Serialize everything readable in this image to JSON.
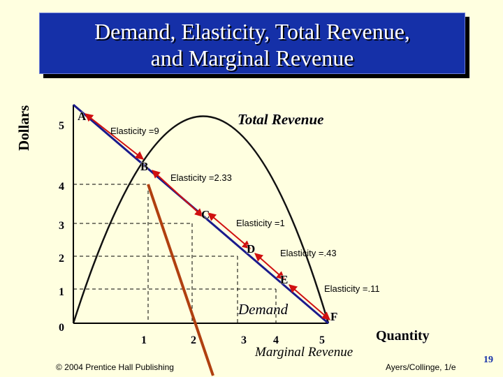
{
  "title": {
    "line1": "Demand, Elasticity, Total Revenue,",
    "line2": "and Marginal Revenue"
  },
  "y_axis_label": "Dollars",
  "x_axis_label": "Quantity",
  "y_ticks": [
    "5",
    "4",
    "3",
    "2",
    "1",
    "0"
  ],
  "x_ticks": [
    "1",
    "2",
    "3",
    "4",
    "5"
  ],
  "points": [
    "A",
    "B",
    "C",
    "D",
    "E",
    "F"
  ],
  "elasticities": [
    "Elasticity =9",
    "Elasticity =2.33",
    "Elasticity =1",
    "Elasticity =.43",
    "Elasticity =.11"
  ],
  "curves": {
    "total_revenue": "Total Revenue",
    "demand": "Demand",
    "marginal_revenue": "Marginal Revenue"
  },
  "colors": {
    "title_bg": "#1530A8",
    "background": "#FFFFE0",
    "demand_line": "#1a1a8c",
    "marginal_revenue_line": "#b04010",
    "arrows": "#d01010"
  },
  "footer": {
    "copyright": "© 2004 Prentice Hall Publishing",
    "authors": "Ayers/Collinge, 1/e",
    "page": "19"
  }
}
